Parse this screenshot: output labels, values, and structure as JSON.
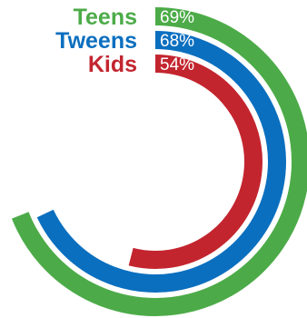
{
  "chart_data": {
    "type": "radial-bar",
    "full_scale": 100,
    "series": [
      {
        "name": "Teens",
        "value": 69,
        "value_label": "69%",
        "color": "#4cab48"
      },
      {
        "name": "Tweens",
        "value": 68,
        "value_label": "68%",
        "color": "#0b6fbf"
      },
      {
        "name": "Kids",
        "value": 54,
        "value_label": "54%",
        "color": "#c3252f"
      }
    ]
  }
}
